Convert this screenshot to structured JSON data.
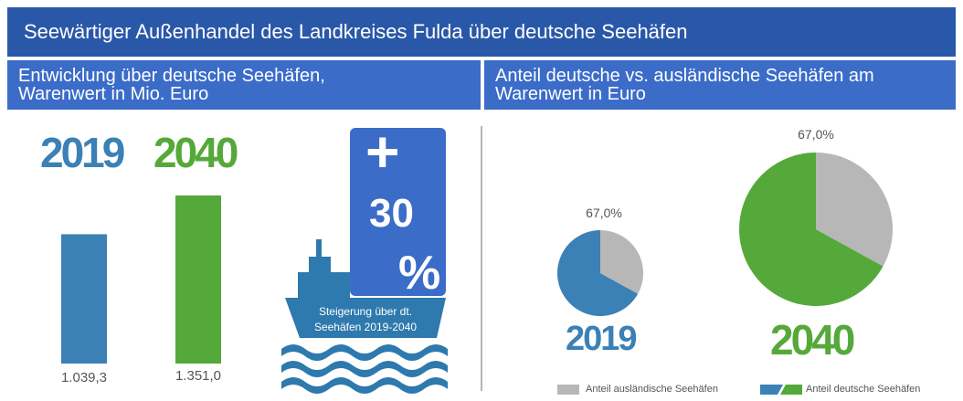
{
  "header": {
    "title": "Seewärtiger Außenhandel des Landkreises Fulda über deutsche Seehäfen"
  },
  "left_panel": {
    "title_line1": "Entwicklung über deutsche Seehäfen,",
    "title_line2": "Warenwert in Mio. Euro"
  },
  "right_panel": {
    "title_line1": "Anteil deutsche vs. ausländische Seehäfen am",
    "title_line2": "Warenwert in Euro"
  },
  "ship": {
    "plus": "+",
    "number": "30",
    "percent": "%",
    "caption_line1": "Steigerung über dt.",
    "caption_line2": "Seehäfen 2019-2040"
  },
  "colors": {
    "blue": "#3b81b5",
    "green": "#55a93a",
    "gray": "#b7b7b7",
    "ship": "#2e79ad",
    "box": "#3b6cc8"
  },
  "chart_data": [
    {
      "type": "bar",
      "title": "Entwicklung über deutsche Seehäfen, Warenwert in Mio. Euro",
      "categories": [
        "2019",
        "2040"
      ],
      "values": [
        1039.3,
        1351.0
      ],
      "value_labels": [
        "1.039,3",
        "1.351,0"
      ],
      "ylim": [
        0,
        1351.0
      ]
    },
    {
      "type": "pie",
      "title": "2019",
      "label": "67,0%",
      "slices": [
        {
          "name": "Anteil deutsche Seehäfen",
          "value": 67.0
        },
        {
          "name": "Anteil ausländische Seehäfen",
          "value": 33.0
        }
      ]
    },
    {
      "type": "pie",
      "title": "2040",
      "label": "67,0%",
      "slices": [
        {
          "name": "Anteil deutsche Seehäfen",
          "value": 67.0
        },
        {
          "name": "Anteil ausländische Seehäfen",
          "value": 33.0
        }
      ]
    }
  ],
  "legend": {
    "foreign": "Anteil ausländische Seehäfen",
    "german": "Anteil deutsche Seehäfen"
  }
}
